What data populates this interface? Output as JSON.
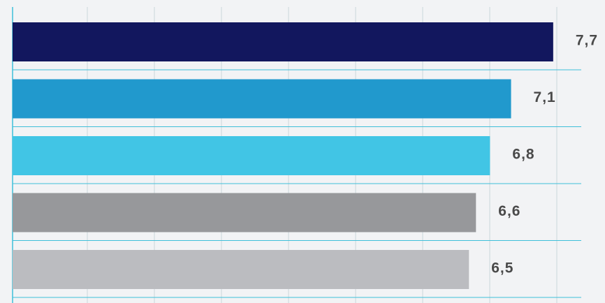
{
  "chart_data": {
    "type": "bar",
    "orientation": "horizontal",
    "title": "",
    "xlabel": "",
    "ylabel": "",
    "categories": [
      "",
      "",
      "",
      "",
      ""
    ],
    "values": [
      7.7,
      7.1,
      6.8,
      6.6,
      6.5
    ],
    "value_labels": [
      "7,7",
      "7,1",
      "6,8",
      "6,6",
      "6,5"
    ],
    "bar_colors": [
      "#12175e",
      "#2199cd",
      "#41c5e5",
      "#97989b",
      "#bbbcc0"
    ],
    "grid_color": "#3ebfd9",
    "grid": true,
    "legend": "none"
  }
}
